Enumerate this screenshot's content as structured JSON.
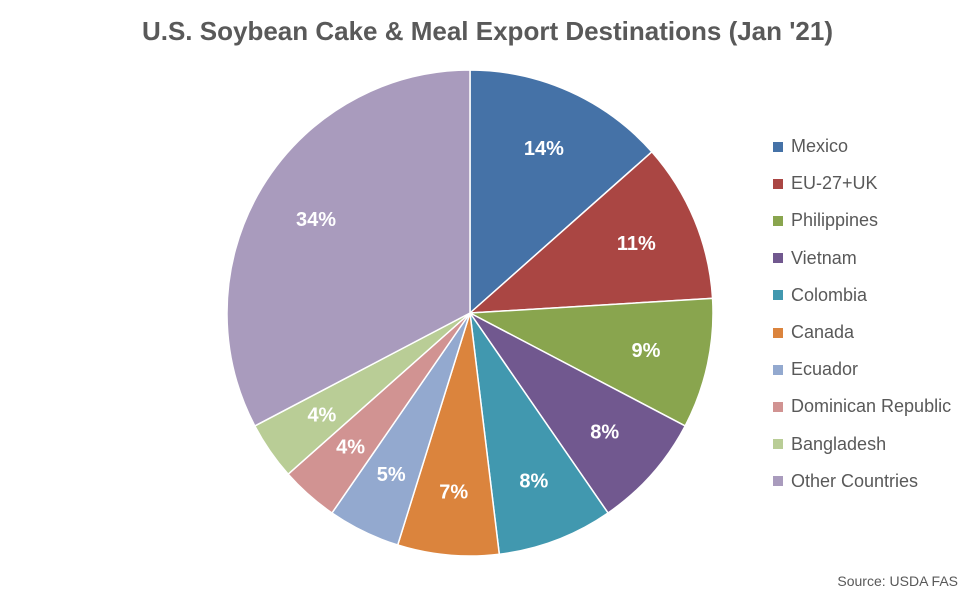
{
  "chart_data": {
    "type": "pie",
    "title": "U.S. Soybean Cake & Meal Export Destinations (Jan '21)",
    "slices": [
      {
        "label": "Mexico",
        "value": 14,
        "display": "14%",
        "color": "#4572A7"
      },
      {
        "label": "EU-27+UK",
        "value": 11,
        "display": "11%",
        "color": "#AA4643"
      },
      {
        "label": "Philippines",
        "value": 9,
        "display": "9%",
        "color": "#89A54E"
      },
      {
        "label": "Vietnam",
        "value": 8,
        "display": "8%",
        "color": "#71588F"
      },
      {
        "label": "Colombia",
        "value": 8,
        "display": "8%",
        "color": "#4198AF"
      },
      {
        "label": "Canada",
        "value": 7,
        "display": "7%",
        "color": "#DB843D"
      },
      {
        "label": "Ecuador",
        "value": 5,
        "display": "5%",
        "color": "#93A9CF"
      },
      {
        "label": "Dominican Republic",
        "value": 4,
        "display": "4%",
        "color": "#D19392"
      },
      {
        "label": "Bangladesh",
        "value": 4,
        "display": "4%",
        "color": "#B9CD96"
      },
      {
        "label": "Other Countries",
        "value": 34,
        "display": "34%",
        "color": "#A99BBD"
      }
    ],
    "legend_position": "right",
    "source": "Source: USDA FAS"
  }
}
